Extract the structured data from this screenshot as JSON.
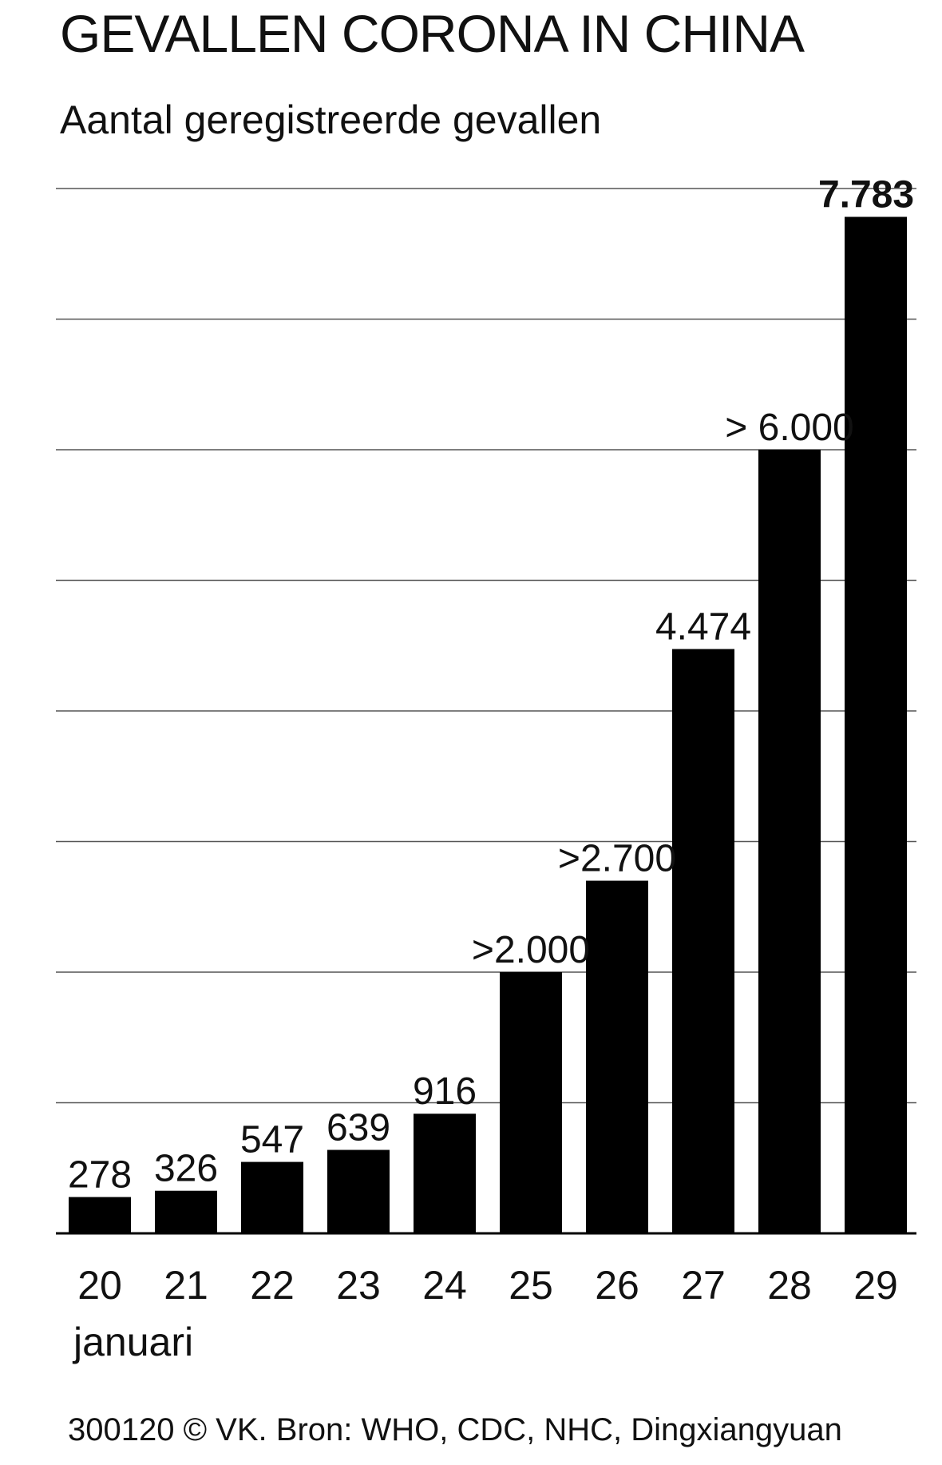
{
  "header": {
    "title": "GEVALLEN CORONA IN CHINA",
    "subtitle": "Aantal geregistreerde gevallen"
  },
  "axis": {
    "month_label": "januari"
  },
  "footer": {
    "source": "300120 © VK. Bron: WHO, CDC, NHC, Dingxiangyuan"
  },
  "colors": {
    "bar": "#000000",
    "grid": "#555555",
    "text": "#111111"
  },
  "chart_data": {
    "type": "bar",
    "title": "GEVALLEN CORONA IN CHINA",
    "subtitle": "Aantal geregistreerde gevallen",
    "categories": [
      "20",
      "21",
      "22",
      "23",
      "24",
      "25",
      "26",
      "27",
      "28",
      "29"
    ],
    "values": [
      278,
      326,
      547,
      639,
      916,
      2000,
      2700,
      4474,
      6000,
      7783
    ],
    "data_labels": [
      "278",
      "326",
      "547",
      "639",
      "916",
      ">2.000",
      ">2.700",
      "4.474",
      "> 6.000",
      "7.783"
    ],
    "xlabel": "januari",
    "ylabel": "",
    "ylim": [
      0,
      8000
    ],
    "grid": true,
    "legend": "none"
  }
}
